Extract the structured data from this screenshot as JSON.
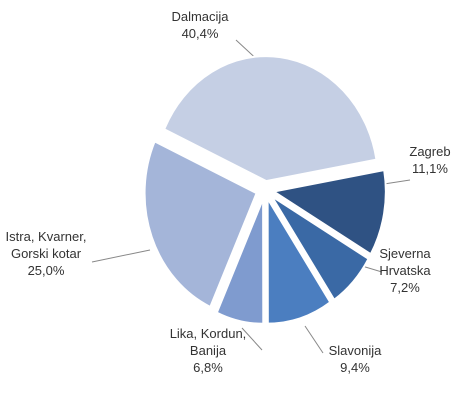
{
  "chart_data": {
    "type": "pie",
    "categories": [
      "Dalmacija",
      "Zagreb",
      "Sjeverna Hrvatska",
      "Slavonija",
      "Lika, Kordun, Banija",
      "Istra, Kvarner, Gorski kotar"
    ],
    "values": [
      40.4,
      11.1,
      7.2,
      9.4,
      6.8,
      25.0
    ],
    "value_labels": [
      "40,4%",
      "11,1%",
      "7,2%",
      "9,4%",
      "6,8%",
      "25,0%"
    ],
    "colors": [
      "#c5cfe4",
      "#2f5283",
      "#3a69a5",
      "#4b7ec0",
      "#7f9bcf",
      "#a4b5d9"
    ]
  }
}
